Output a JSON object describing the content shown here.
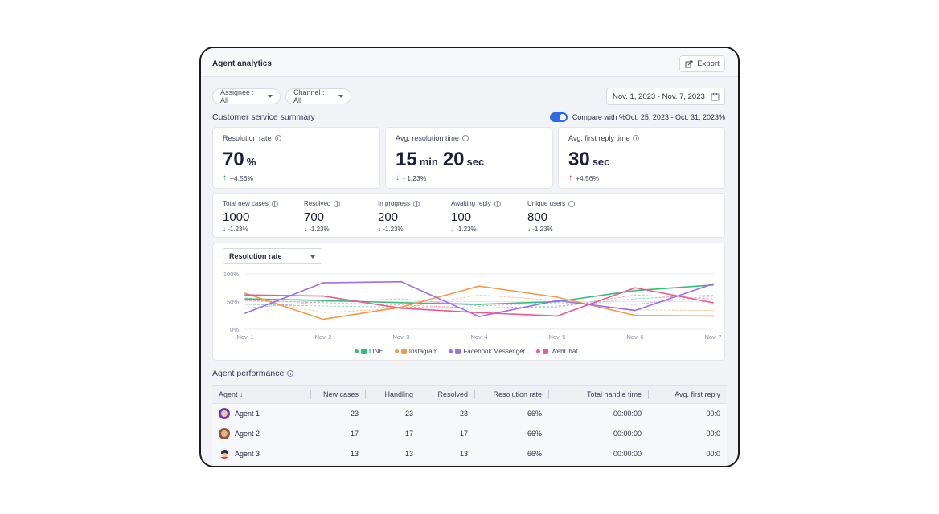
{
  "header": {
    "title": "Agent analytics",
    "export_label": "Export"
  },
  "filters": {
    "assignee": "Assignee : All",
    "channel": "Channel : All",
    "date_range": "Nov. 1, 2023 - Nov. 7, 2023"
  },
  "summary": {
    "title": "Customer service summary",
    "compare_label": "Compare with %Oct. 25, 2023 - Oct. 31, 2023%",
    "compare_enabled": true,
    "kpis": [
      {
        "label": "Resolution rate",
        "value": "70",
        "unit": "%",
        "delta": "+4.56%",
        "trend": "up-good"
      },
      {
        "label": "Avg. resolution time",
        "value_min": "15",
        "unit_min": "min",
        "value_sec": "20",
        "unit_sec": "sec",
        "delta": "- 1.23%",
        "trend": "down-good"
      },
      {
        "label": "Avg. first reply time",
        "value": "30",
        "unit": "sec",
        "delta": "+4.56%",
        "trend": "up-bad"
      }
    ],
    "stats": [
      {
        "label": "Total new cases",
        "value": "1000",
        "delta": "-1.23%"
      },
      {
        "label": "Resolved",
        "value": "700",
        "delta": "-1.23%"
      },
      {
        "label": "In progress",
        "value": "200",
        "delta": "-1.23%"
      },
      {
        "label": "Awaiting reply",
        "value": "100",
        "delta": "-1.23%"
      },
      {
        "label": "Unique users",
        "value": "800",
        "delta": "-1.23%"
      }
    ]
  },
  "chart": {
    "metric_select": "Resolution rate"
  },
  "chart_data": {
    "type": "line",
    "categories": [
      "Nov. 1",
      "Nov. 2",
      "Nov. 3",
      "Nov. 4",
      "Nov. 5",
      "Nov. 6",
      "Nov. 7"
    ],
    "ylim": [
      0,
      100
    ],
    "yticks": [
      "0%",
      "50%",
      "100%"
    ],
    "series": [
      {
        "name": "LINE",
        "color": "#2fbf7a",
        "values": [
          55,
          52,
          48,
          45,
          50,
          70,
          80
        ],
        "compare": [
          45,
          42,
          40,
          38,
          42,
          55,
          62
        ]
      },
      {
        "name": "Instagram",
        "color": "#f29a4a",
        "values": [
          65,
          18,
          40,
          78,
          58,
          25,
          24
        ],
        "compare": [
          58,
          30,
          38,
          62,
          52,
          35,
          34
        ]
      },
      {
        "name": "Facebook Messenger",
        "color": "#9b6ef3",
        "values": [
          29,
          84,
          86,
          23,
          52,
          34,
          82
        ],
        "compare": [
          38,
          50,
          55,
          42,
          48,
          45,
          60
        ]
      },
      {
        "name": "WebChat",
        "color": "#ee5a8a",
        "values": [
          62,
          60,
          38,
          30,
          24,
          75,
          48
        ],
        "compare": [
          52,
          48,
          44,
          38,
          40,
          62,
          55
        ]
      }
    ],
    "legend_position": "bottom-center",
    "grid": true
  },
  "performance": {
    "title": "Agent performance",
    "columns": [
      "Agent",
      "New cases",
      "Handling",
      "Resolved",
      "Resolution rate",
      "Total handle time",
      "Avg. first reply"
    ],
    "rows": [
      {
        "agent": "Agent 1",
        "new_cases": "23",
        "handling": "23",
        "resolved": "23",
        "resolution_rate": "66%",
        "total_handle_time": "00:00:00",
        "avg_first_reply": "00:0"
      },
      {
        "agent": "Agent 2",
        "new_cases": "17",
        "handling": "17",
        "resolved": "17",
        "resolution_rate": "66%",
        "total_handle_time": "00:00:00",
        "avg_first_reply": "00:0"
      },
      {
        "agent": "Agent 3",
        "new_cases": "13",
        "handling": "13",
        "resolved": "13",
        "resolution_rate": "66%",
        "total_handle_time": "00:00:00",
        "avg_first_reply": "00:0"
      }
    ]
  }
}
